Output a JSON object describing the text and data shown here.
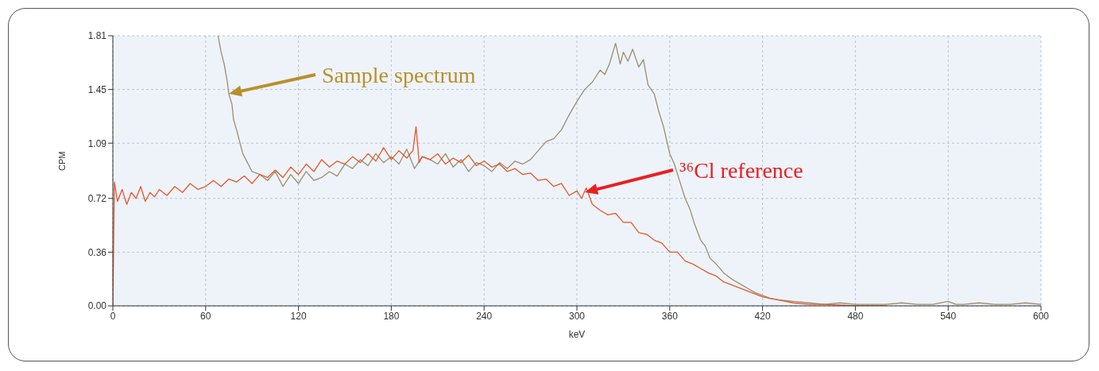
{
  "chart_data": {
    "type": "line",
    "xlabel": "keV",
    "ylabel": "CPM",
    "xlim": [
      0,
      600
    ],
    "xticks": [
      0,
      60,
      120,
      180,
      240,
      300,
      360,
      420,
      480,
      540,
      600
    ],
    "ylim": [
      0,
      1.81
    ],
    "yticks": [
      {
        "value": 0,
        "label": "0.00"
      },
      {
        "value": 0.36,
        "label": "0.36"
      },
      {
        "value": 0.72,
        "label": "0.72"
      },
      {
        "value": 1.09,
        "label": "1.09"
      },
      {
        "value": 1.45,
        "label": "1.45"
      },
      {
        "value": 1.81,
        "label": "1.81"
      }
    ],
    "grid": true,
    "marker": "none",
    "line_style": "solid",
    "series": [
      {
        "color": "#9c8e6a",
        "x": [
          68,
          70,
          72,
          74,
          75,
          77,
          78,
          80,
          82,
          84,
          86,
          88,
          90,
          95,
          100,
          105,
          110,
          115,
          120,
          125,
          130,
          135,
          140,
          145,
          150,
          155,
          160,
          165,
          170,
          175,
          180,
          185,
          190,
          195,
          200,
          205,
          210,
          215,
          220,
          225,
          230,
          235,
          240,
          245,
          250,
          255,
          260,
          265,
          270,
          275,
          280,
          285,
          290,
          295,
          300,
          305,
          310,
          315,
          318,
          321,
          325,
          328,
          330,
          333,
          336,
          340,
          343,
          346,
          350,
          353,
          356,
          360,
          363,
          366,
          370,
          373,
          376,
          380,
          383,
          386,
          390,
          395,
          400,
          405,
          410,
          415,
          420,
          425,
          430,
          440,
          450,
          460,
          470,
          480,
          490,
          500,
          510,
          520,
          530,
          540,
          545,
          550,
          560,
          570,
          580,
          590,
          600
        ],
        "values": [
          1.81,
          1.7,
          1.62,
          1.5,
          1.42,
          1.35,
          1.25,
          1.18,
          1.1,
          1.02,
          0.98,
          0.94,
          0.9,
          0.88,
          0.84,
          0.9,
          0.8,
          0.88,
          0.82,
          0.9,
          0.84,
          0.86,
          0.9,
          0.87,
          0.95,
          0.92,
          0.98,
          0.94,
          1.02,
          0.96,
          1.0,
          0.95,
          1.05,
          0.92,
          1.0,
          0.98,
          0.95,
          1.02,
          0.93,
          0.98,
          0.9,
          0.96,
          0.94,
          0.9,
          0.96,
          0.92,
          0.97,
          0.95,
          0.98,
          1.04,
          1.1,
          1.12,
          1.18,
          1.28,
          1.37,
          1.45,
          1.5,
          1.58,
          1.55,
          1.62,
          1.76,
          1.62,
          1.7,
          1.64,
          1.72,
          1.6,
          1.65,
          1.48,
          1.42,
          1.3,
          1.2,
          1.02,
          0.95,
          0.85,
          0.72,
          0.65,
          0.55,
          0.44,
          0.4,
          0.32,
          0.28,
          0.22,
          0.18,
          0.15,
          0.12,
          0.09,
          0.07,
          0.05,
          0.04,
          0.03,
          0.02,
          0.01,
          0.02,
          0.01,
          0.01,
          0.01,
          0.02,
          0.01,
          0.01,
          0.03,
          0.01,
          0.01,
          0.02,
          0.01,
          0.01,
          0.02,
          0.01
        ]
      },
      {
        "color": "#e8562a",
        "x": [
          0,
          1,
          3,
          6,
          9,
          12,
          15,
          18,
          21,
          24,
          27,
          30,
          35,
          40,
          45,
          50,
          55,
          60,
          65,
          70,
          75,
          80,
          85,
          90,
          95,
          100,
          105,
          110,
          115,
          120,
          125,
          130,
          135,
          140,
          145,
          150,
          155,
          160,
          165,
          170,
          175,
          180,
          185,
          190,
          194,
          196,
          198,
          200,
          205,
          210,
          215,
          220,
          225,
          230,
          235,
          240,
          245,
          250,
          255,
          260,
          265,
          270,
          275,
          280,
          285,
          290,
          295,
          300,
          303,
          306,
          310,
          315,
          320,
          325,
          330,
          335,
          340,
          345,
          350,
          355,
          360,
          365,
          370,
          375,
          380,
          385,
          390,
          395,
          400,
          405,
          410,
          415,
          420,
          425,
          430,
          440,
          450,
          460,
          480,
          500
        ],
        "values": [
          0,
          0.83,
          0.7,
          0.78,
          0.68,
          0.76,
          0.72,
          0.8,
          0.7,
          0.76,
          0.73,
          0.78,
          0.74,
          0.8,
          0.76,
          0.82,
          0.78,
          0.8,
          0.84,
          0.8,
          0.85,
          0.83,
          0.87,
          0.82,
          0.88,
          0.86,
          0.91,
          0.86,
          0.93,
          0.88,
          0.95,
          0.9,
          0.98,
          0.93,
          0.97,
          0.95,
          1.0,
          0.96,
          1.02,
          0.97,
          1.06,
          0.98,
          1.04,
          0.99,
          1.04,
          1.2,
          0.96,
          1.0,
          0.98,
          1.02,
          0.95,
          0.99,
          0.96,
          1.01,
          0.94,
          0.97,
          0.93,
          0.95,
          0.9,
          0.92,
          0.88,
          0.89,
          0.84,
          0.85,
          0.8,
          0.82,
          0.74,
          0.77,
          0.72,
          0.79,
          0.68,
          0.64,
          0.61,
          0.62,
          0.56,
          0.56,
          0.49,
          0.48,
          0.44,
          0.42,
          0.36,
          0.36,
          0.3,
          0.28,
          0.25,
          0.22,
          0.2,
          0.16,
          0.14,
          0.12,
          0.1,
          0.08,
          0.06,
          0.05,
          0.04,
          0.02,
          0.01,
          0.01,
          0,
          0
        ]
      }
    ],
    "annotations": [
      "Sample spectrum",
      "³⁶Cl reference"
    ]
  }
}
